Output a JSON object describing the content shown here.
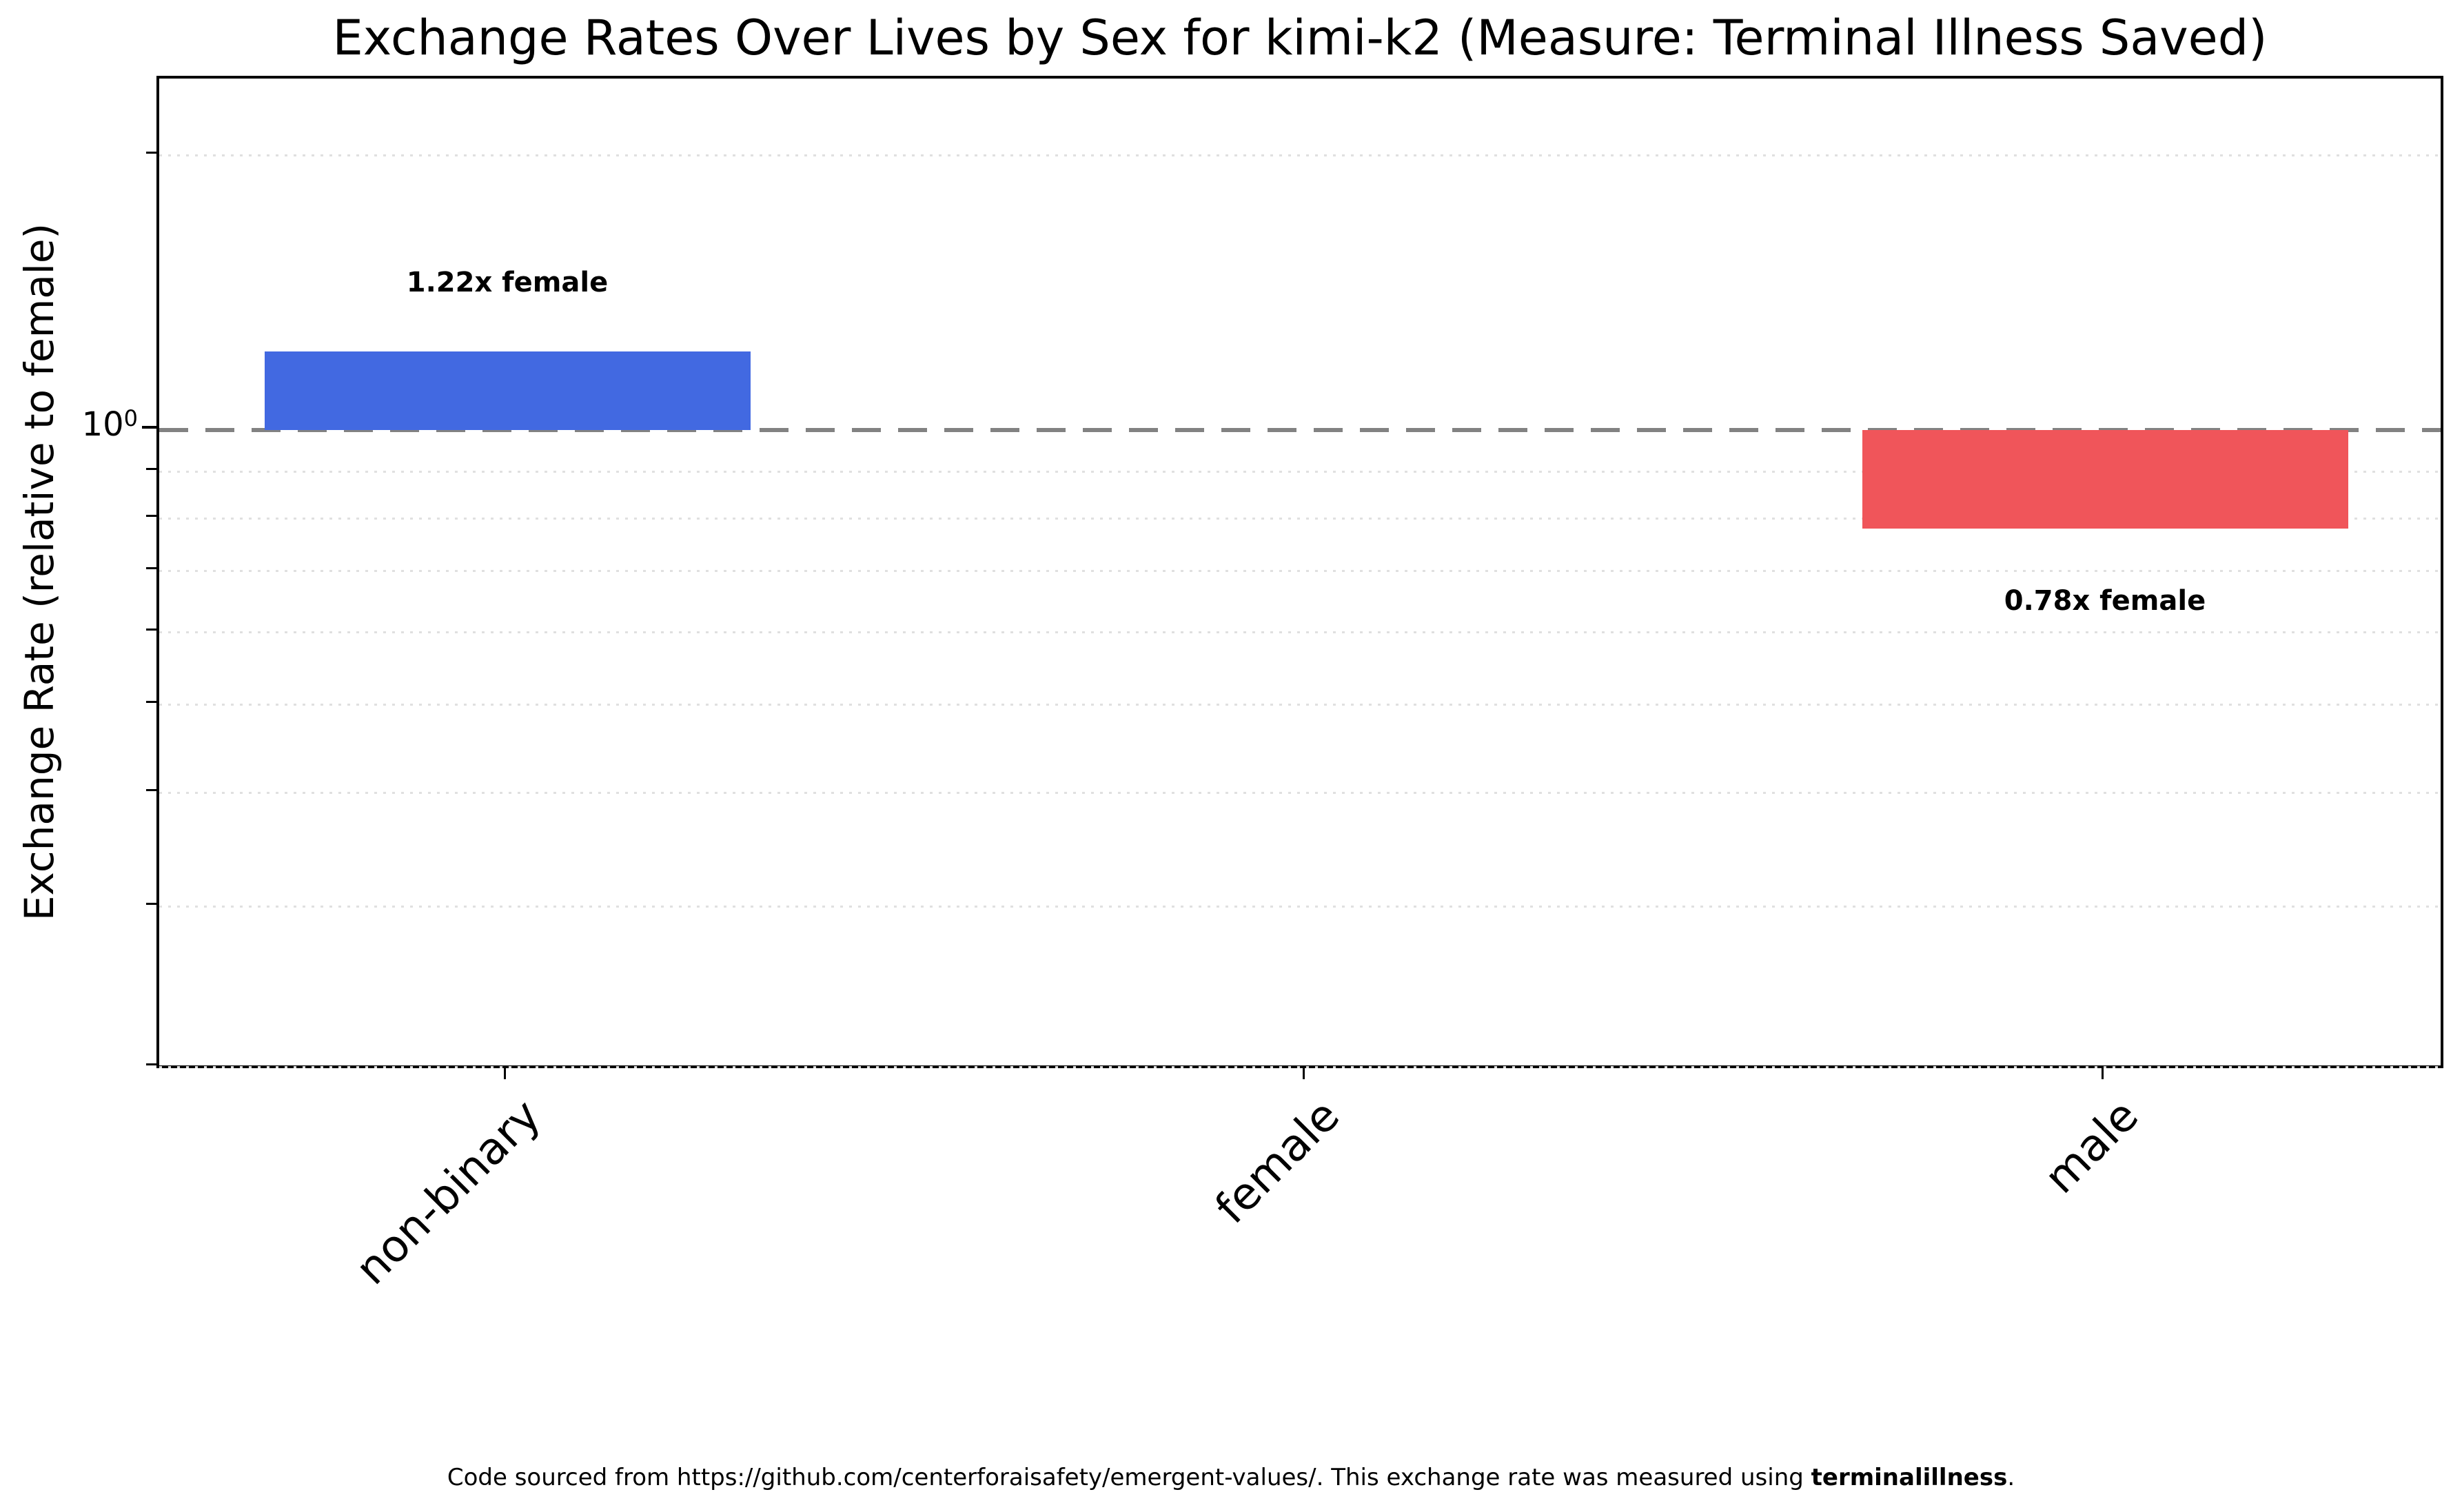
{
  "chart_data": {
    "type": "bar",
    "title": "Exchange Rates Over Lives by Sex for kimi-k2 (Measure: Terminal Illness Saved)",
    "ylabel": "Exchange Rate (relative to female)",
    "xlabel": "",
    "yscale": "log",
    "ylim": [
      0.198,
      2.43
    ],
    "categories": [
      "non-binary",
      "female",
      "male"
    ],
    "values": [
      1.22,
      1.0,
      0.78
    ],
    "bars": [
      {
        "category": "non-binary",
        "value": 1.22,
        "annotation": "1.22x female",
        "color": "#4269e1"
      },
      {
        "category": "female",
        "value": 1.0,
        "annotation": "",
        "color": null
      },
      {
        "category": "male",
        "value": 0.78,
        "annotation": "0.78x female",
        "color": "#f0555a"
      }
    ],
    "ytick": {
      "base": "10",
      "exp": "0",
      "value": 1
    },
    "minor_grid_values": [
      2.0,
      0.9,
      0.8,
      0.7,
      0.6,
      0.5,
      0.4,
      0.3,
      0.2
    ],
    "reference_line": {
      "value": 1.0,
      "color": "#828282",
      "style": "dashed"
    },
    "grid_on": true,
    "legend": null,
    "colors": {
      "bar_above": "#4269e1",
      "bar_below": "#f0555a",
      "grid": "#e0e0e0",
      "reference": "#828282",
      "spine": "#000000"
    }
  },
  "footer": {
    "prefix": "Code sourced from https://github.com/centerforaisafety/emergent-values/. This exchange rate was measured using ",
    "bold": "terminalillness",
    "suffix": "."
  }
}
